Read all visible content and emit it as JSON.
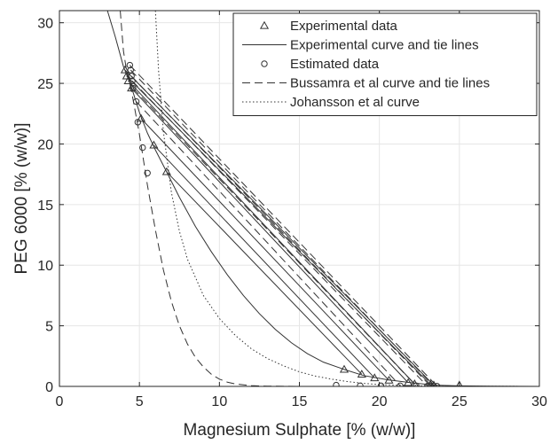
{
  "chart_data": {
    "type": "scatter",
    "xlabel": "Magnesium Sulphate [% (w/w)]",
    "ylabel": "PEG 6000 [% (w/w)]",
    "xlim": [
      0,
      30
    ],
    "ylim": [
      0,
      31
    ],
    "xticks": [
      "0",
      "5",
      "10",
      "15",
      "20",
      "25",
      "30"
    ],
    "yticks": [
      "0",
      "5",
      "10",
      "15",
      "20",
      "25",
      "30"
    ],
    "grid": true,
    "legend_position": "top-right",
    "series": [
      {
        "name": "Experimental data",
        "kind": "markers",
        "marker": "triangle",
        "points": [
          [
            4.1,
            26.1
          ],
          [
            4.2,
            25.6
          ],
          [
            4.3,
            25.2
          ],
          [
            4.5,
            24.6
          ],
          [
            5.1,
            22.1
          ],
          [
            5.9,
            19.9
          ],
          [
            6.7,
            17.7
          ],
          [
            17.8,
            1.4
          ],
          [
            18.9,
            1.0
          ],
          [
            19.7,
            0.7
          ],
          [
            20.6,
            0.5
          ],
          [
            21.8,
            0.3
          ],
          [
            22.2,
            0.2
          ],
          [
            23.2,
            0.15
          ],
          [
            23.4,
            0.1
          ],
          [
            25.0,
            0.1
          ]
        ]
      },
      {
        "name": "Experimental curve and tie lines",
        "kind": "line",
        "style": "solid",
        "curve": [
          [
            3.0,
            31.0
          ],
          [
            3.5,
            28.8
          ],
          [
            4.0,
            26.4
          ],
          [
            4.5,
            24.7
          ],
          [
            5.0,
            22.6
          ],
          [
            5.5,
            20.9
          ],
          [
            6.0,
            19.5
          ],
          [
            6.7,
            17.7
          ],
          [
            7.5,
            15.6
          ],
          [
            8.5,
            13.2
          ],
          [
            9.5,
            11.1
          ],
          [
            10.5,
            9.2
          ],
          [
            11.5,
            7.5
          ],
          [
            12.5,
            6.0
          ],
          [
            13.5,
            4.7
          ],
          [
            14.5,
            3.6
          ],
          [
            15.5,
            2.7
          ],
          [
            16.5,
            2.0
          ],
          [
            17.8,
            1.4
          ],
          [
            19.0,
            0.9
          ],
          [
            20.5,
            0.55
          ],
          [
            22.0,
            0.3
          ],
          [
            23.5,
            0.1
          ],
          [
            25.0,
            0.05
          ],
          [
            27.0,
            0.02
          ],
          [
            30.0,
            0.0
          ]
        ],
        "tie_lines": [
          [
            [
              4.1,
              26.1
            ],
            [
              23.4,
              0.1
            ]
          ],
          [
            [
              4.2,
              25.6
            ],
            [
              23.2,
              0.15
            ]
          ],
          [
            [
              4.3,
              25.2
            ],
            [
              22.2,
              0.2
            ]
          ],
          [
            [
              4.5,
              24.6
            ],
            [
              21.8,
              0.3
            ]
          ],
          [
            [
              5.1,
              22.1
            ],
            [
              20.6,
              0.5
            ]
          ],
          [
            [
              5.9,
              19.9
            ],
            [
              19.7,
              0.7
            ]
          ],
          [
            [
              6.7,
              17.7
            ],
            [
              18.9,
              1.0
            ]
          ]
        ]
      },
      {
        "name": "Estimated data",
        "kind": "markers",
        "marker": "circle",
        "points": [
          [
            4.4,
            26.5
          ],
          [
            4.45,
            26.1
          ],
          [
            4.5,
            25.6
          ],
          [
            4.55,
            25.2
          ],
          [
            4.6,
            24.6
          ],
          [
            4.8,
            23.5
          ],
          [
            4.9,
            21.8
          ],
          [
            5.2,
            19.7
          ],
          [
            5.5,
            17.6
          ],
          [
            17.3,
            0.1
          ],
          [
            18.8,
            0.05
          ],
          [
            20.1,
            0.05
          ],
          [
            21.3,
            0.05
          ],
          [
            22.3,
            0.05
          ],
          [
            23.0,
            0.02
          ],
          [
            23.2,
            0.02
          ],
          [
            23.4,
            0.02
          ],
          [
            23.6,
            0.02
          ]
        ]
      },
      {
        "name": "Bussamra et al curve and tie lines",
        "kind": "line",
        "style": "dashed",
        "curve": [
          [
            3.8,
            31.0
          ],
          [
            4.0,
            27.7
          ],
          [
            4.2,
            26.0
          ],
          [
            4.5,
            24.4
          ],
          [
            5.0,
            20.8
          ],
          [
            5.5,
            16.6
          ],
          [
            6.0,
            12.9
          ],
          [
            6.5,
            9.6
          ],
          [
            7.0,
            7.0
          ],
          [
            7.5,
            5.0
          ],
          [
            8.0,
            3.5
          ],
          [
            8.5,
            2.4
          ],
          [
            9.0,
            1.6
          ],
          [
            9.5,
            1.0
          ],
          [
            10.0,
            0.6
          ],
          [
            10.5,
            0.35
          ],
          [
            11.0,
            0.2
          ],
          [
            12.0,
            0.06
          ],
          [
            13.0,
            0.02
          ],
          [
            15.0,
            0.0
          ],
          [
            30.0,
            0.0
          ]
        ],
        "tie_lines": [
          [
            [
              4.4,
              26.5
            ],
            [
              23.6,
              0.02
            ]
          ],
          [
            [
              4.45,
              26.1
            ],
            [
              23.4,
              0.02
            ]
          ],
          [
            [
              4.5,
              25.6
            ],
            [
              23.2,
              0.02
            ]
          ],
          [
            [
              4.55,
              25.2
            ],
            [
              23.0,
              0.02
            ]
          ],
          [
            [
              4.6,
              24.6
            ],
            [
              22.3,
              0.05
            ]
          ],
          [
            [
              4.8,
              23.5
            ],
            [
              21.3,
              0.05
            ]
          ]
        ]
      },
      {
        "name": "Johansson et al curve",
        "kind": "line",
        "style": "dotted",
        "curve": [
          [
            6.0,
            31.0
          ],
          [
            6.2,
            26.0
          ],
          [
            6.5,
            21.0
          ],
          [
            7.0,
            16.0
          ],
          [
            7.5,
            12.8
          ],
          [
            8.0,
            10.5
          ],
          [
            9.0,
            7.5
          ],
          [
            10.0,
            5.6
          ],
          [
            11.0,
            4.2
          ],
          [
            12.0,
            3.1
          ],
          [
            13.0,
            2.3
          ],
          [
            14.0,
            1.7
          ],
          [
            15.0,
            1.2
          ],
          [
            16.0,
            0.85
          ],
          [
            17.0,
            0.6
          ],
          [
            18.0,
            0.4
          ],
          [
            19.0,
            0.25
          ],
          [
            20.0,
            0.15
          ],
          [
            22.0,
            0.06
          ],
          [
            24.0,
            0.02
          ],
          [
            30.0,
            0.0
          ]
        ]
      }
    ]
  }
}
